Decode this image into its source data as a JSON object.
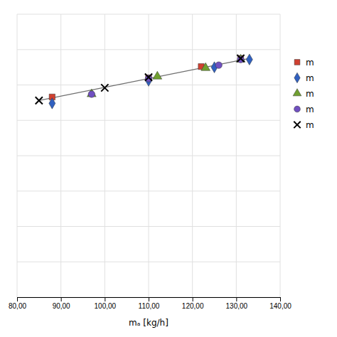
{
  "chart_data": {
    "type": "scatter",
    "xlabel": "mₐ [kg/h]",
    "xlim": [
      80,
      140
    ],
    "ylim": [
      0.0,
      0.8
    ],
    "xticks": [
      {
        "value": 80,
        "label": "80,00"
      },
      {
        "value": 90,
        "label": "90,00"
      },
      {
        "value": 100,
        "label": "100,00"
      },
      {
        "value": 110,
        "label": "110,00"
      },
      {
        "value": 120,
        "label": "120,00"
      },
      {
        "value": 130,
        "label": "130,00"
      },
      {
        "value": 140,
        "label": "140,00"
      }
    ],
    "yticks": [
      0.0,
      0.1,
      0.2,
      0.3,
      0.4,
      0.5,
      0.6,
      0.7,
      0.8
    ],
    "grid": true,
    "tick_labels": "x",
    "legend": "right",
    "series": [
      {
        "name": "m",
        "marker": "square",
        "color": "#d04030",
        "x": [
          88,
          110,
          122,
          131
        ],
        "values": [
          0.566,
          0.62,
          0.652,
          0.675
        ]
      },
      {
        "name": "m",
        "marker": "diamond",
        "color": "#3060c0",
        "x": [
          88,
          110,
          125,
          133
        ],
        "values": [
          0.548,
          0.612,
          0.65,
          0.672
        ]
      },
      {
        "name": "m",
        "marker": "triangle",
        "color": "#70a030",
        "x": [
          97,
          112,
          123,
          131
        ],
        "values": [
          0.574,
          0.624,
          0.648,
          0.672
        ]
      },
      {
        "name": "m",
        "marker": "circle",
        "color": "#7050c0",
        "x": [
          97,
          110,
          126,
          131
        ],
        "values": [
          0.574,
          0.618,
          0.656,
          0.672
        ]
      },
      {
        "name": "m",
        "marker": "x",
        "color": "#000000",
        "x": [
          85,
          100,
          110,
          131
        ],
        "values": [
          0.556,
          0.592,
          0.622,
          0.675
        ]
      }
    ],
    "trendline": {
      "color": "#707070",
      "x": [
        85,
        133
      ],
      "values": [
        0.556,
        0.675
      ]
    }
  }
}
